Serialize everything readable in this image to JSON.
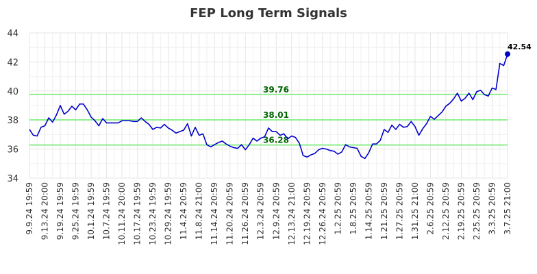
{
  "chart_data": {
    "type": "line",
    "title": "FEP Long Term Signals",
    "xlabel": "",
    "ylabel": "",
    "ylim": [
      34,
      44
    ],
    "y_ticks": [
      "34",
      "36",
      "38",
      "40",
      "42",
      "44"
    ],
    "x_ticks": [
      "9.9.24 19:59",
      "9.13.24 20:00",
      "9.19.24 19:59",
      "9.25.24 19:59",
      "10.1.24 19:59",
      "10.7.24 19:59",
      "10.11.24 20:00",
      "10.17.24 19:59",
      "10.23.24 19:59",
      "10.29.24 19:59",
      "11.4.24 20:59",
      "11.8.24 21:00",
      "11.14.24 20:59",
      "11.20.24 20:59",
      "11.26.24 20:59",
      "12.3.24 20:59",
      "12.9.24 20:59",
      "12.13.24 21:00",
      "12.19.24 20:59",
      "12.26.24 20:59",
      "1.2.25 20:59",
      "1.8.25 20:59",
      "1.14.25 20:59",
      "1.21.25 20:59",
      "1.27.25 20:59",
      "1.31.25 21:00",
      "2.6.25 20:59",
      "2.12.25 20:59",
      "2.19.25 20:59",
      "2.25.25 20:59",
      "3.3.25 20:59",
      "3.7.25 21:00"
    ],
    "grid": true,
    "series": [
      {
        "color": "#0000cc",
        "values": [
          37.35,
          36.95,
          36.9,
          37.5,
          37.6,
          38.15,
          37.85,
          38.35,
          39.0,
          38.4,
          38.6,
          38.95,
          38.7,
          39.1,
          39.1,
          38.7,
          38.2,
          37.95,
          37.6,
          38.1,
          37.8,
          37.8,
          37.8,
          37.8,
          37.95,
          37.95,
          37.95,
          37.9,
          37.9,
          38.15,
          37.9,
          37.7,
          37.35,
          37.5,
          37.45,
          37.7,
          37.45,
          37.3,
          37.1,
          37.2,
          37.3,
          37.75,
          36.9,
          37.5,
          36.95,
          37.05,
          36.3,
          36.15,
          36.3,
          36.45,
          36.55,
          36.35,
          36.2,
          36.1,
          36.05,
          36.3,
          35.95,
          36.3,
          36.75,
          36.55,
          36.75,
          36.85,
          37.45,
          37.2,
          37.2,
          36.95,
          37.05,
          36.7,
          36.9,
          36.8,
          36.4,
          35.55,
          35.45,
          35.6,
          35.7,
          35.95,
          36.05,
          36.0,
          35.9,
          35.85,
          35.65,
          35.8,
          36.3,
          36.15,
          36.1,
          36.05,
          35.5,
          35.35,
          35.75,
          36.35,
          36.35,
          36.6,
          37.35,
          37.15,
          37.65,
          37.35,
          37.7,
          37.5,
          37.55,
          37.9,
          37.55,
          36.95,
          37.4,
          37.75,
          38.25,
          38.05,
          38.3,
          38.55,
          38.95,
          39.15,
          39.45,
          39.85,
          39.3,
          39.5,
          39.85,
          39.4,
          39.95,
          40.05,
          39.75,
          39.65,
          40.2,
          40.1,
          41.9,
          41.75,
          42.54
        ]
      }
    ],
    "signals": [
      {
        "label": "39.76",
        "value": 39.76
      },
      {
        "label": "38.01",
        "value": 38.01
      },
      {
        "label": "36.28",
        "value": 36.28
      }
    ],
    "last_value_label": "42.54",
    "colors": {
      "line": "#0000cc",
      "signal_line": "#90ee90",
      "signal_text": "#006400",
      "grid": "#e5e5e5"
    }
  }
}
